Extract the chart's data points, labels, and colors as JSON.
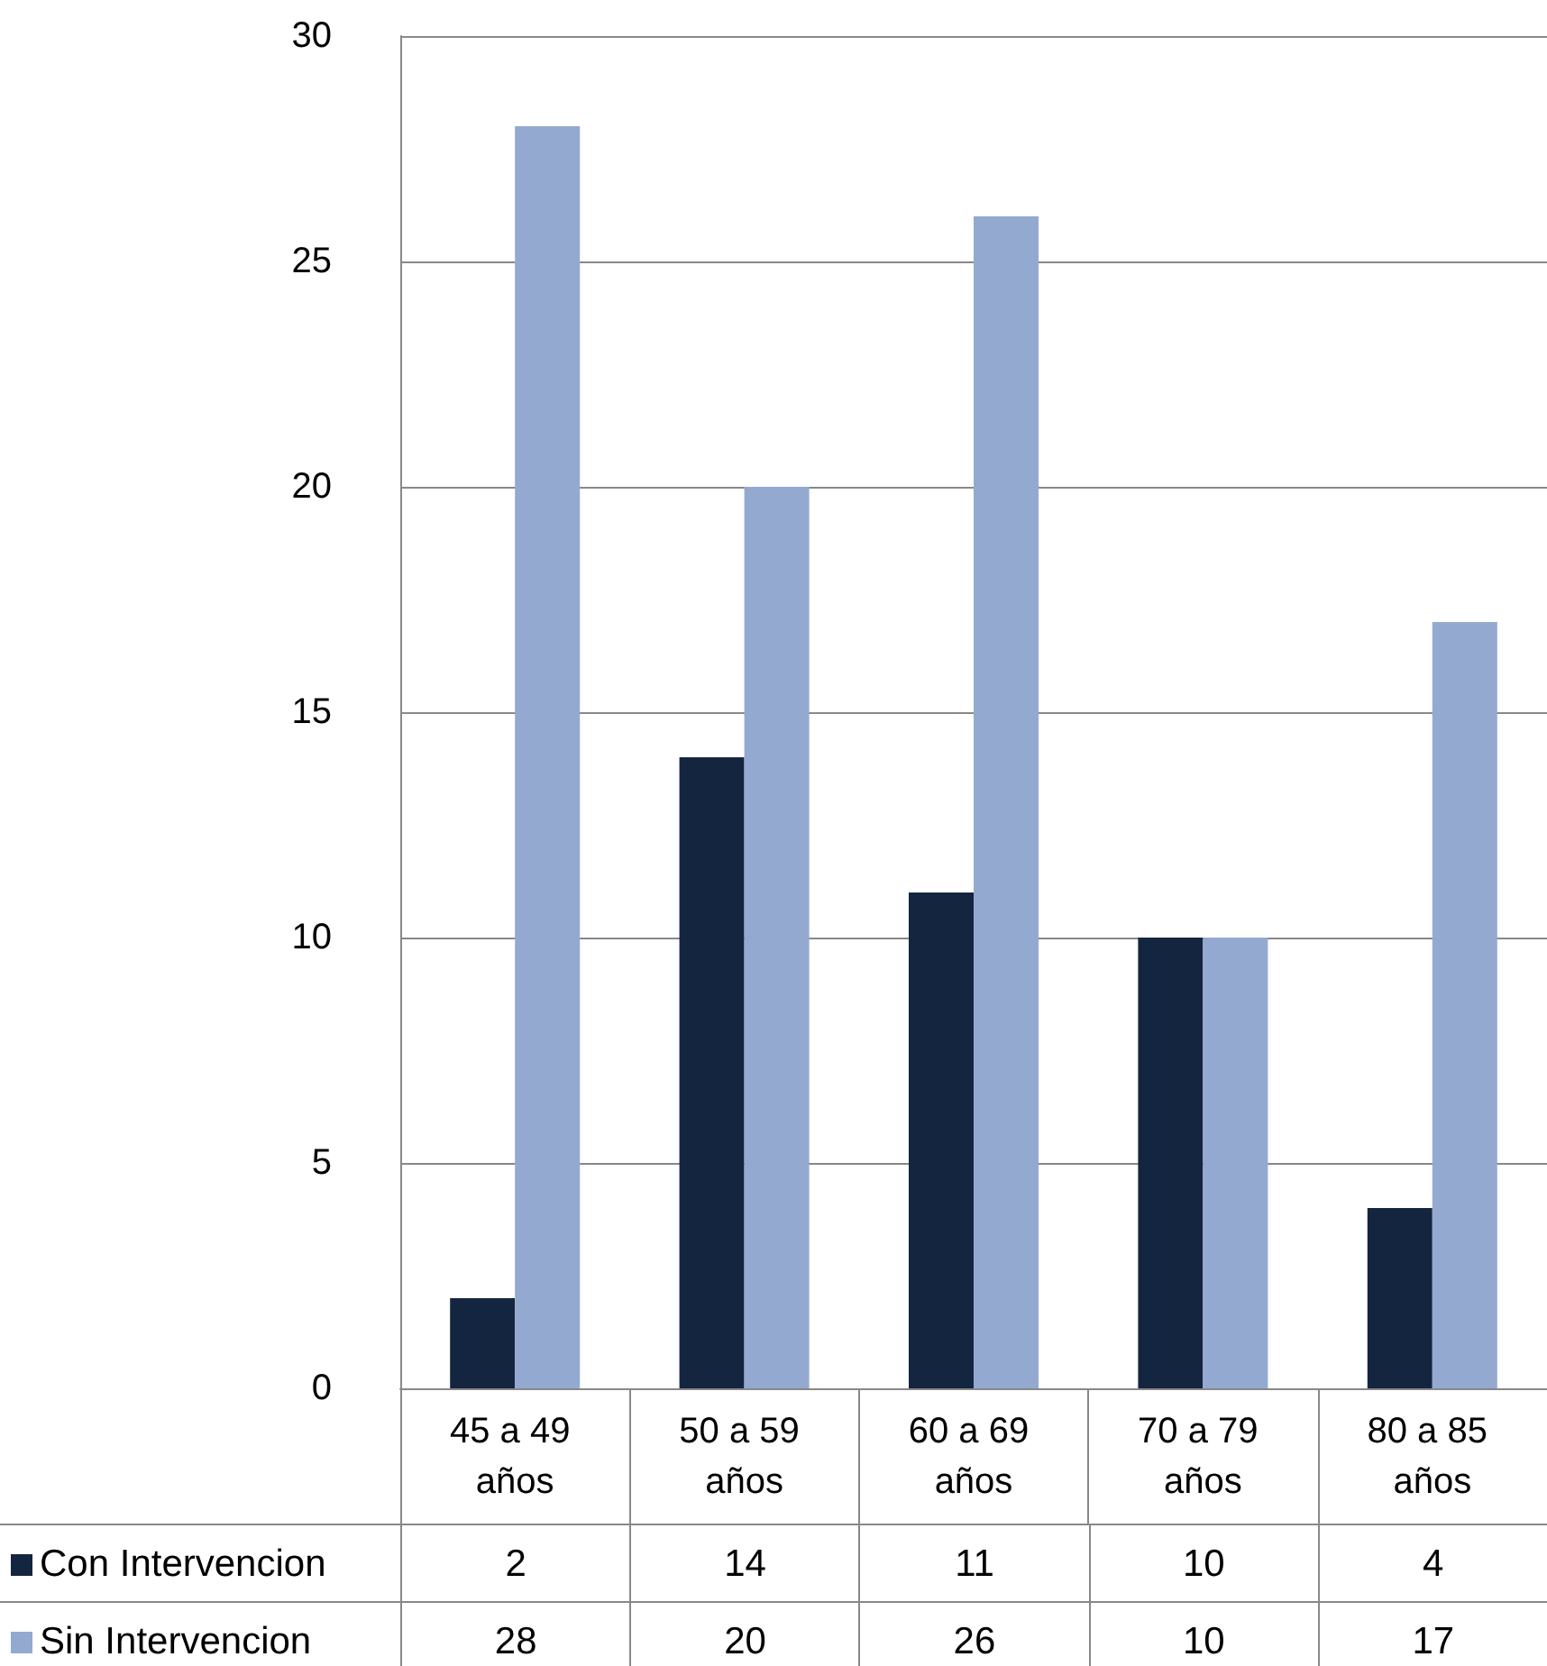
{
  "chart_data": {
    "type": "bar",
    "categories": [
      "45 a 49 años",
      "50 a 59 años",
      "60 a 69 años",
      "70 a 79 años",
      "80 a 85 años"
    ],
    "series": [
      {
        "name": "Con Intervencion",
        "color": "#14253f",
        "values": [
          2,
          14,
          11,
          10,
          4
        ]
      },
      {
        "name": "Sin Intervencion",
        "color": "#94a9d0",
        "values": [
          28,
          20,
          26,
          10,
          17
        ]
      }
    ],
    "ylim": [
      0,
      30
    ],
    "yticks": [
      0,
      5,
      10,
      15,
      20,
      25,
      30
    ],
    "grid": "y",
    "data_labels": true,
    "legend": "bottom left"
  }
}
